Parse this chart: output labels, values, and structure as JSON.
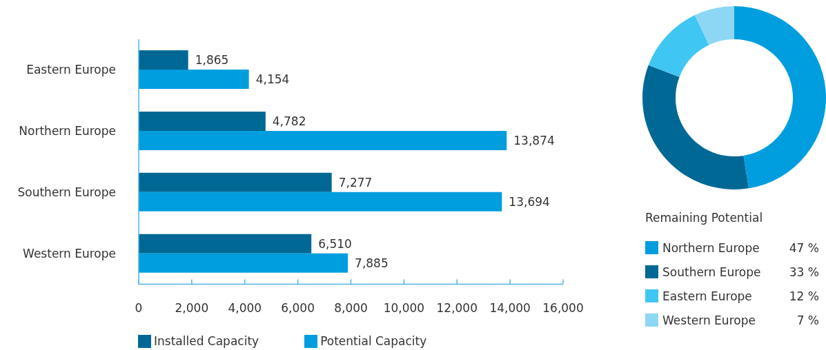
{
  "chart_data": [
    {
      "type": "bar",
      "orientation": "horizontal",
      "categories": [
        "Eastern Europe",
        "Northern Europe",
        "Southern Europe",
        "Western Europe"
      ],
      "series": [
        {
          "name": "Installed Capacity",
          "color": "#006894",
          "values": [
            1865,
            4782,
            7277,
            6510
          ],
          "value_labels": [
            "1,865",
            "4,782",
            "7,277",
            "6,510"
          ]
        },
        {
          "name": "Potential Capacity",
          "color": "#009ede",
          "values": [
            4154,
            13874,
            13694,
            7885
          ],
          "value_labels": [
            "4,154",
            "13,874",
            "13,694",
            "7,885"
          ]
        }
      ],
      "xlim": [
        0,
        16000
      ],
      "xticks": [
        0,
        {
          "value": 2000,
          "label": "2,000"
        },
        {
          "value": 4000,
          "label": "4,000"
        },
        {
          "value": 6000,
          "label": "6,000"
        },
        {
          "value": 8000,
          "label": "8,000"
        },
        {
          "value": 10000,
          "label": "10,000"
        },
        {
          "value": 12000,
          "label": "12,000"
        },
        {
          "value": 14000,
          "label": "14,000"
        },
        {
          "value": 16000,
          "label": "16,000"
        }
      ],
      "legend": "bottom"
    },
    {
      "type": "donut",
      "categories": [
        "Northern Europe",
        "Southern Europe",
        "Eastern Europe",
        "Western Europe"
      ],
      "values": [
        47,
        33,
        12,
        7
      ],
      "colors": [
        "#009ede",
        "#006894",
        "#3fc6f2",
        "#8dd7f5"
      ],
      "value_labels": [
        "47 %",
        "33 %",
        "12 %",
        "7 %"
      ],
      "legend_title": "Remaining Potential",
      "legend": "bottom"
    }
  ]
}
